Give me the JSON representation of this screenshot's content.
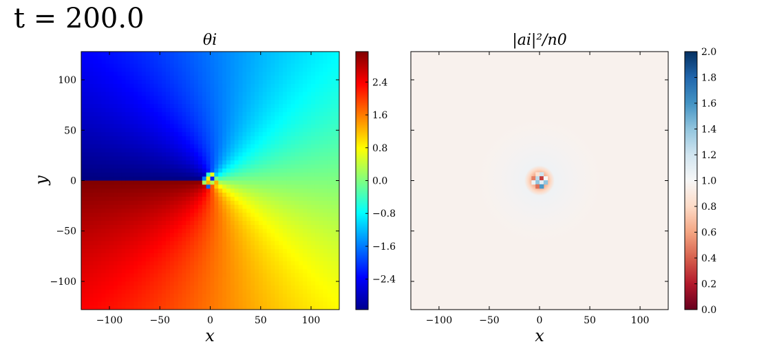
{
  "figure": {
    "suptitle": "t = 200.0"
  },
  "chart_data": [
    {
      "type": "heatmap",
      "title": "θi",
      "xlabel": "x",
      "ylabel": "y",
      "xlim": [
        -128,
        128
      ],
      "ylim": [
        -128,
        128
      ],
      "xticks": [
        -100,
        -50,
        0,
        50,
        100
      ],
      "yticks": [
        -100,
        -50,
        0,
        50,
        100
      ],
      "xtick_labels": [
        "−100",
        "−50",
        "0",
        "50",
        "100"
      ],
      "ytick_labels": [
        "−100",
        "−50",
        "0",
        "50",
        "100"
      ],
      "colormap": "jet",
      "vortex_center": [
        0,
        0
      ],
      "colorbar": {
        "range": [
          -3.1416,
          3.1416
        ],
        "ticks": [
          -2.4,
          -1.6,
          -0.8,
          0.0,
          0.8,
          1.6,
          2.4
        ],
        "tick_labels": [
          "−2.4",
          "−1.6",
          "−0.8",
          "0.0",
          "0.8",
          "1.6",
          "2.4"
        ]
      }
    },
    {
      "type": "heatmap",
      "title": "|ai|²/n0",
      "xlabel": "x",
      "ylabel": "",
      "xlim": [
        -128,
        128
      ],
      "ylim": [
        -128,
        128
      ],
      "xticks": [
        -100,
        -50,
        0,
        50,
        100
      ],
      "yticks": [
        -100,
        -50,
        0,
        50,
        100
      ],
      "xtick_labels": [
        "−100",
        "−50",
        "0",
        "50",
        "100"
      ],
      "colormap": "RdBu",
      "background_value": 1.0,
      "vortex_center": [
        0,
        0
      ],
      "colorbar": {
        "range": [
          0.0,
          2.0
        ],
        "ticks": [
          0.0,
          0.2,
          0.4,
          0.6,
          0.8,
          1.0,
          1.2,
          1.4,
          1.6,
          1.8,
          2.0
        ],
        "tick_labels": [
          "0.0",
          "0.2",
          "0.4",
          "0.6",
          "0.8",
          "1.0",
          "1.2",
          "1.4",
          "1.6",
          "1.8",
          "2.0"
        ]
      }
    }
  ]
}
